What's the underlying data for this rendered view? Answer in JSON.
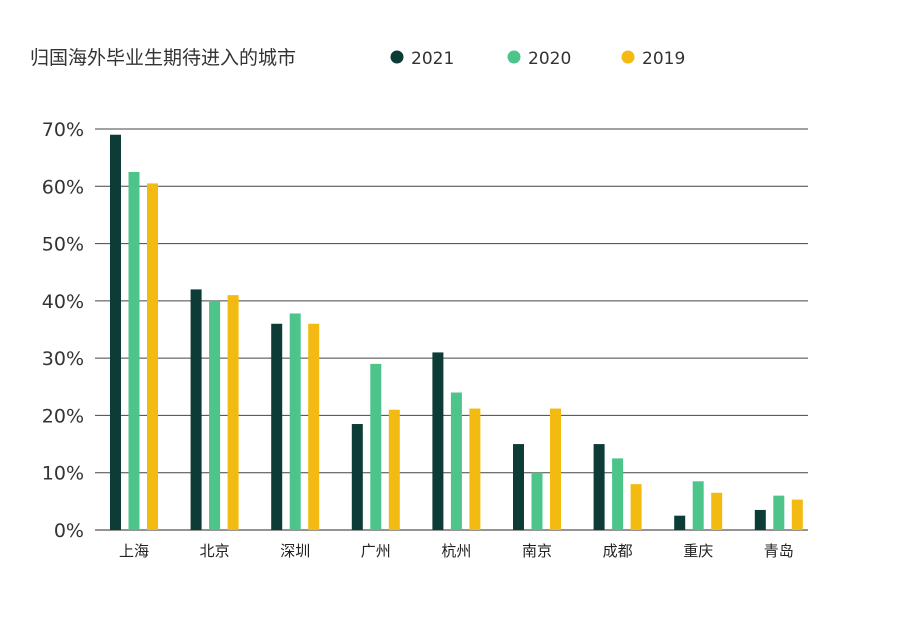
{
  "chart_data": {
    "type": "bar",
    "title": "归国海外毕业生期待进入的城市",
    "xlabel": "",
    "ylabel": "",
    "categories": [
      "上海",
      "北京",
      "深圳",
      "广州",
      "杭州",
      "南京",
      "成都",
      "重庆",
      "青岛"
    ],
    "series": [
      {
        "name": "2021",
        "color": "#0d3b35",
        "values": [
          69,
          42,
          36,
          18.5,
          31,
          15,
          15,
          2.5,
          3.5
        ]
      },
      {
        "name": "2020",
        "color": "#4cc48a",
        "values": [
          62.5,
          40,
          37.8,
          29,
          24,
          10,
          12.5,
          8.5,
          6
        ]
      },
      {
        "name": "2019",
        "color": "#f3bb12",
        "values": [
          60.5,
          41,
          36,
          21,
          21.2,
          21.2,
          8,
          6.5,
          5.3
        ]
      }
    ],
    "ylim": [
      0,
      70
    ],
    "yticks": [
      "0%",
      "10%",
      "20%",
      "30%",
      "40%",
      "50%",
      "60%",
      "70%"
    ],
    "legend_position": "top",
    "grid": true
  }
}
